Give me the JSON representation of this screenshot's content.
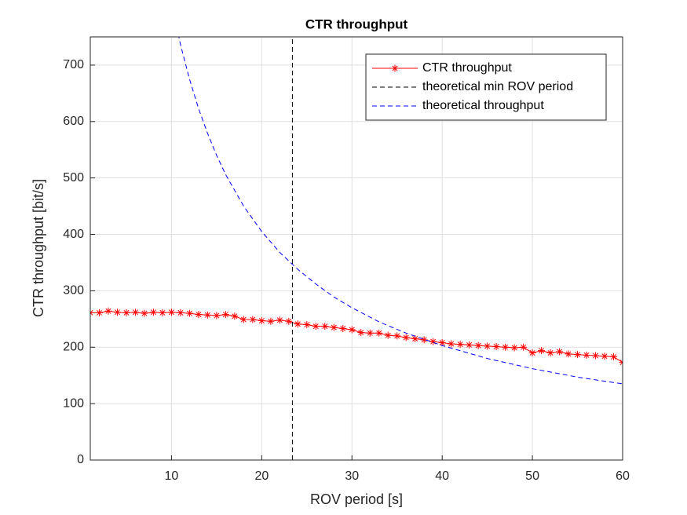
{
  "chart_data": {
    "type": "line",
    "title": "CTR throughput",
    "x_label": "ROV period [s]",
    "y_label": "CTR throughput [bit/s]",
    "xlim": [
      1,
      60
    ],
    "ylim": [
      0,
      750
    ],
    "xticks": [
      10,
      20,
      30,
      40,
      50,
      60
    ],
    "yticks": [
      0,
      100,
      200,
      300,
      400,
      500,
      600,
      700
    ],
    "grid": true,
    "legend": "upper right",
    "series": [
      {
        "name": "CTR throughput",
        "color": "#ff0000",
        "style": "solid",
        "marker": "asterisk",
        "x": [
          1,
          2,
          3,
          4,
          5,
          6,
          7,
          8,
          9,
          10,
          11,
          12,
          13,
          14,
          15,
          16,
          17,
          18,
          19,
          20,
          21,
          22,
          23,
          24,
          25,
          26,
          27,
          28,
          29,
          30,
          31,
          32,
          33,
          34,
          35,
          36,
          37,
          38,
          39,
          40,
          41,
          42,
          43,
          44,
          45,
          46,
          47,
          48,
          49,
          50,
          51,
          52,
          53,
          54,
          55,
          56,
          57,
          58,
          59,
          60
        ],
        "values": [
          261,
          261,
          264,
          262,
          261,
          262,
          260,
          262,
          261,
          262,
          261,
          260,
          258,
          257,
          256,
          258,
          255,
          249,
          249,
          247,
          246,
          248,
          246,
          241,
          240,
          237,
          237,
          235,
          233,
          231,
          226,
          225,
          225,
          221,
          220,
          217,
          215,
          213,
          210,
          208,
          206,
          205,
          204,
          203,
          202,
          201,
          200,
          199,
          200,
          190,
          194,
          190,
          192,
          188,
          187,
          186,
          185,
          184,
          183,
          173
        ]
      },
      {
        "name": "theoretical min ROV period",
        "color": "#000000",
        "style": "dashed",
        "x": [
          23.4,
          23.4
        ],
        "values": [
          0,
          750
        ]
      },
      {
        "name": "theoretical throughput",
        "color": "#0000ff",
        "style": "dashed",
        "x": [
          10,
          11,
          12,
          13,
          14,
          15,
          16,
          18,
          20,
          22,
          24,
          26,
          28,
          30,
          33,
          36,
          40,
          45,
          50,
          55,
          60
        ],
        "values": [
          810,
          736,
          675,
          623,
          579,
          540,
          506,
          450,
          405,
          368,
          338,
          312,
          289,
          270,
          245,
          225,
          203,
          180,
          162,
          147,
          135
        ]
      }
    ]
  }
}
